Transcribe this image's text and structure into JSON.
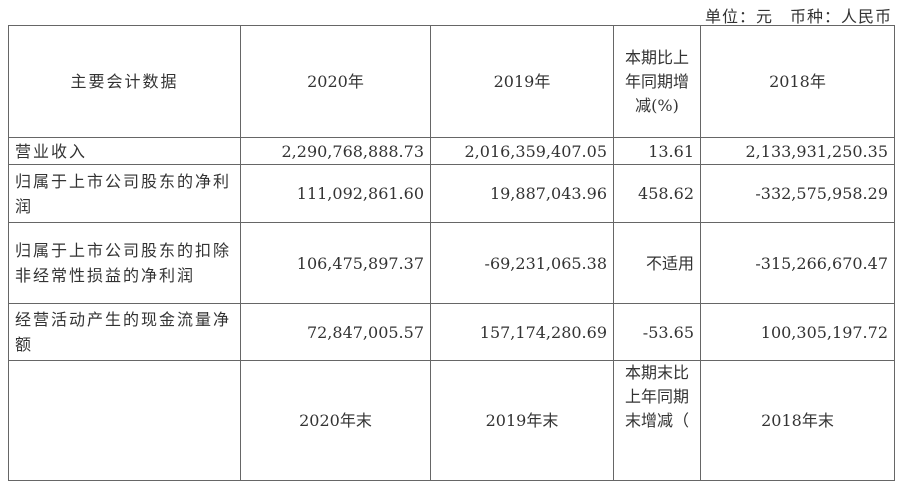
{
  "unit_line": "单位：元　币种：人民币",
  "header": {
    "label": "主要会计数据",
    "col_2020": "2020年",
    "col_2019": "2019年",
    "col_change": "本期比上年同期增减(%)",
    "col_2018": "2018年"
  },
  "rows": [
    {
      "label": "营业收入",
      "v2020": "2,290,768,888.73",
      "v2019": "2,016,359,407.05",
      "change": "13.61",
      "v2018": "2,133,931,250.35"
    },
    {
      "label": "归属于上市公司股东的净利润",
      "v2020": "111,092,861.60",
      "v2019": "19,887,043.96",
      "change": "458.62",
      "v2018": "-332,575,958.29"
    },
    {
      "label": "归属于上市公司股东的扣除非经常性损益的净利润",
      "v2020": "106,475,897.37",
      "v2019": "-69,231,065.38",
      "change": "不适用",
      "v2018": "-315,266,670.47"
    },
    {
      "label": "经营活动产生的现金流量净额",
      "v2020": "72,847,005.57",
      "v2019": "157,174,280.69",
      "change": "-53.65",
      "v2018": "100,305,197.72"
    }
  ],
  "header2": {
    "col_2020": "2020年末",
    "col_2019": "2019年末",
    "col_change": "本期末比上年同期末增减（",
    "col_2018": "2018年末"
  }
}
